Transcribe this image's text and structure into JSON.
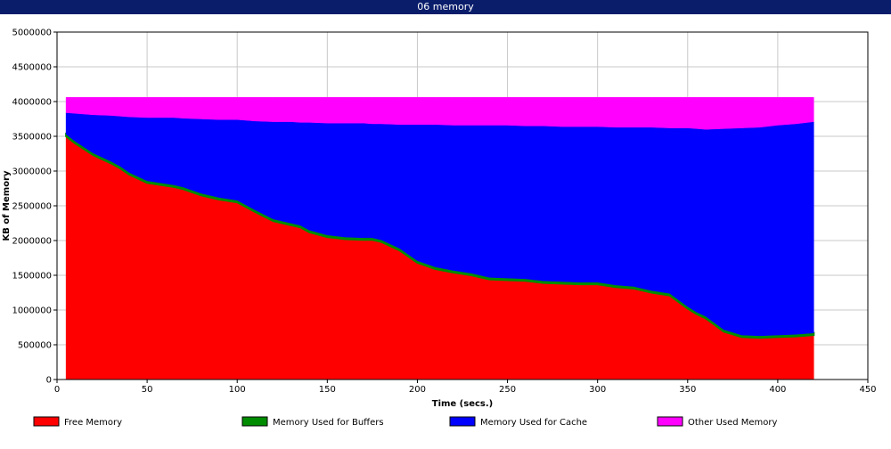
{
  "window": {
    "title": "06 memory"
  },
  "chart_data": {
    "type": "area",
    "stacked": true,
    "title": "06 memory",
    "xlabel": "Time (secs.)",
    "ylabel": "KB of Memory",
    "xlim": [
      0,
      450
    ],
    "ylim": [
      0,
      5000000
    ],
    "x_ticks": [
      0,
      50,
      100,
      150,
      200,
      250,
      300,
      350,
      400,
      450
    ],
    "y_ticks": [
      0,
      500000,
      1000000,
      1500000,
      2000000,
      2500000,
      3000000,
      3500000,
      4000000,
      4500000,
      5000000
    ],
    "grid": true,
    "legend_position": "bottom",
    "x": [
      5,
      10,
      20,
      30,
      35,
      40,
      50,
      60,
      65,
      70,
      80,
      90,
      100,
      110,
      120,
      130,
      135,
      140,
      150,
      160,
      170,
      175,
      180,
      190,
      200,
      210,
      220,
      230,
      240,
      250,
      260,
      270,
      280,
      290,
      300,
      310,
      320,
      330,
      340,
      350,
      355,
      360,
      370,
      380,
      390,
      400,
      410,
      420
    ],
    "series": [
      {
        "name": "Free Memory",
        "color": "#ff0000",
        "values": [
          3500000,
          3400000,
          3230000,
          3110000,
          3040000,
          2950000,
          2830000,
          2790000,
          2770000,
          2740000,
          2650000,
          2590000,
          2550000,
          2410000,
          2280000,
          2220000,
          2190000,
          2120000,
          2050000,
          2020000,
          2010000,
          2010000,
          1980000,
          1860000,
          1680000,
          1590000,
          1540000,
          1500000,
          1440000,
          1430000,
          1420000,
          1390000,
          1380000,
          1370000,
          1370000,
          1330000,
          1310000,
          1250000,
          1210000,
          1020000,
          940000,
          880000,
          690000,
          610000,
          600000,
          610000,
          620000,
          640000
        ]
      },
      {
        "name": "Memory Used for Buffers",
        "color": "#008c00",
        "values": [
          30000,
          30000,
          30000,
          30000,
          30000,
          30000,
          30000,
          30000,
          30000,
          30000,
          30000,
          30000,
          30000,
          30000,
          30000,
          30000,
          30000,
          30000,
          30000,
          30000,
          30000,
          30000,
          30000,
          30000,
          30000,
          30000,
          30000,
          30000,
          30000,
          30000,
          30000,
          30000,
          30000,
          30000,
          30000,
          30000,
          30000,
          30000,
          30000,
          30000,
          30000,
          30000,
          30000,
          30000,
          30000,
          30000,
          30000,
          30000
        ]
      },
      {
        "name": "Memory Used for Cache",
        "color": "#0000ff",
        "values": [
          310000,
          400000,
          550000,
          660000,
          720000,
          800000,
          910000,
          950000,
          970000,
          990000,
          1070000,
          1120000,
          1160000,
          1280000,
          1400000,
          1460000,
          1480000,
          1550000,
          1610000,
          1640000,
          1650000,
          1640000,
          1670000,
          1780000,
          1960000,
          2050000,
          2090000,
          2130000,
          2190000,
          2200000,
          2200000,
          2230000,
          2230000,
          2240000,
          2240000,
          2270000,
          2290000,
          2350000,
          2380000,
          2570000,
          2640000,
          2690000,
          2890000,
          2980000,
          3000000,
          3020000,
          3030000,
          3040000
        ]
      },
      {
        "name": "Other Used Memory",
        "color": "#ff00ff",
        "values": [
          220000,
          230000,
          250000,
          260000,
          270000,
          280000,
          290000,
          290000,
          290000,
          300000,
          310000,
          320000,
          320000,
          340000,
          350000,
          350000,
          360000,
          360000,
          370000,
          370000,
          370000,
          380000,
          380000,
          390000,
          390000,
          390000,
          400000,
          400000,
          400000,
          400000,
          410000,
          410000,
          420000,
          420000,
          420000,
          430000,
          430000,
          430000,
          440000,
          440000,
          450000,
          460000,
          450000,
          440000,
          430000,
          400000,
          380000,
          350000
        ]
      }
    ]
  }
}
